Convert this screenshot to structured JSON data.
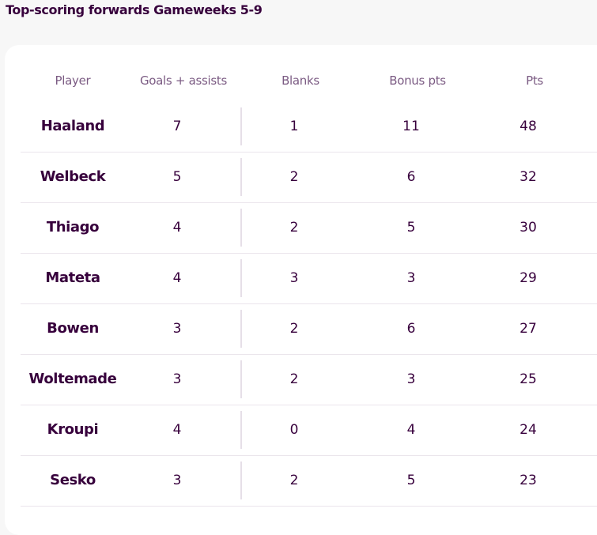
{
  "title": "Top-scoring forwards Gameweeks 5-9",
  "columns": [
    "Player",
    "Goals + assists",
    "Blanks",
    "Bonus pts",
    "Pts"
  ],
  "rows": [
    {
      "player": "Haaland",
      "ga": "7",
      "blanks": "1",
      "bonus": "11",
      "pts": "48"
    },
    {
      "player": "Welbeck",
      "ga": "5",
      "blanks": "2",
      "bonus": "6",
      "pts": "32"
    },
    {
      "player": "Thiago",
      "ga": "4",
      "blanks": "2",
      "bonus": "5",
      "pts": "30"
    },
    {
      "player": "Mateta",
      "ga": "4",
      "blanks": "3",
      "bonus": "3",
      "pts": "29"
    },
    {
      "player": "Bowen",
      "ga": "3",
      "blanks": "2",
      "bonus": "6",
      "pts": "27"
    },
    {
      "player": "Woltemade",
      "ga": "3",
      "blanks": "2",
      "bonus": "3",
      "pts": "25"
    },
    {
      "player": "Kroupi",
      "ga": "4",
      "blanks": "0",
      "bonus": "4",
      "pts": "24"
    },
    {
      "player": "Sesko",
      "ga": "3",
      "blanks": "2",
      "bonus": "5",
      "pts": "23"
    }
  ]
}
